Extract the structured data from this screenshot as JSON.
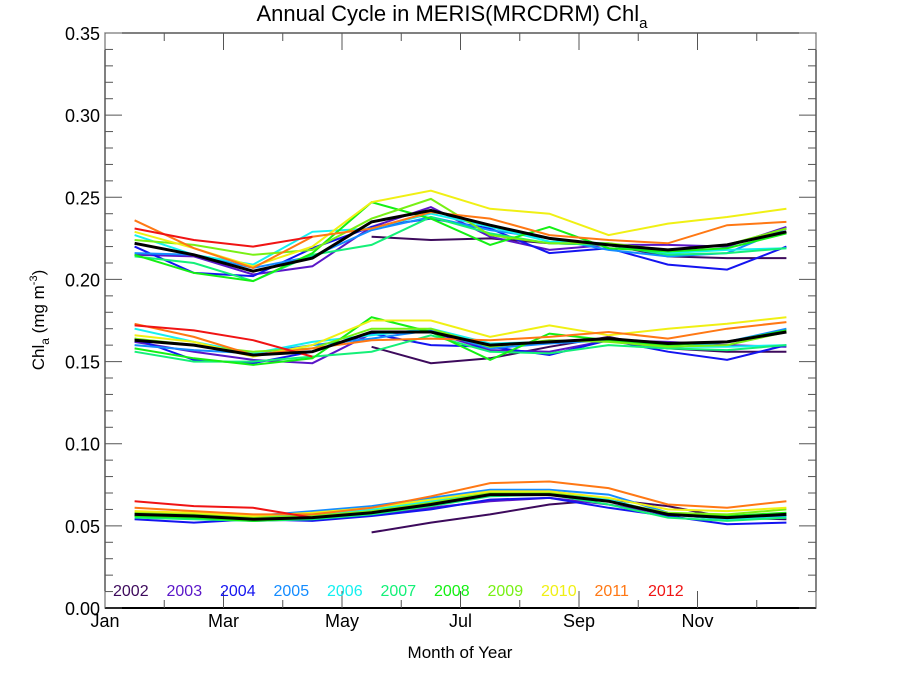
{
  "chart_data": {
    "type": "line",
    "title": "Annual Cycle in MERIS(MRCDRM) Chl",
    "title_subscript": "a",
    "xlabel": "Month of Year",
    "ylabel": "Chl",
    "ylabel_subscript": "a",
    "ylabel_units": " (mg m",
    "ylabel_units_sup": "-3",
    "ylabel_units_close": ")",
    "xlim": [
      0,
      12
    ],
    "ylim": [
      0.0,
      0.35
    ],
    "x_ticks": [
      {
        "value": 0,
        "label": "Jan"
      },
      {
        "value": 2,
        "label": "Mar"
      },
      {
        "value": 4,
        "label": "May"
      },
      {
        "value": 6,
        "label": "Jul"
      },
      {
        "value": 8,
        "label": "Sep"
      },
      {
        "value": 10,
        "label": "Nov"
      }
    ],
    "y_ticks": [
      {
        "value": 0.0,
        "label": "0.00"
      },
      {
        "value": 0.05,
        "label": "0.05"
      },
      {
        "value": 0.1,
        "label": "0.10"
      },
      {
        "value": 0.15,
        "label": "0.15"
      },
      {
        "value": 0.2,
        "label": "0.20"
      },
      {
        "value": 0.25,
        "label": "0.25"
      },
      {
        "value": 0.3,
        "label": "0.30"
      },
      {
        "value": 0.35,
        "label": "0.35"
      }
    ],
    "grid": false,
    "legend_position": "bottom-left",
    "x": [
      0.5,
      1.5,
      2.5,
      3.5,
      4.5,
      5.5,
      6.5,
      7.5,
      8.5,
      9.5,
      10.5,
      11.5
    ],
    "groups": [
      {
        "name": "upper",
        "series": [
          {
            "name": "2002",
            "color": "#3d0a5c",
            "values": [
              null,
              null,
              null,
              null,
              0.226,
              0.224,
              0.225,
              0.222,
              0.221,
              0.214,
              0.213,
              0.213
            ]
          },
          {
            "name": "2003",
            "color": "#5a16c8",
            "values": [
              0.215,
              0.214,
              0.203,
              0.208,
              0.232,
              0.244,
              0.226,
              0.218,
              0.221,
              0.221,
              0.22,
              0.232
            ]
          },
          {
            "name": "2004",
            "color": "#1414f0",
            "values": [
              0.22,
              0.204,
              0.202,
              0.219,
              0.232,
              0.237,
              0.231,
              0.216,
              0.219,
              0.209,
              0.206,
              0.22
            ]
          },
          {
            "name": "2005",
            "color": "#148cff",
            "values": [
              0.216,
              0.215,
              0.207,
              0.214,
              0.23,
              0.238,
              0.23,
              0.225,
              0.218,
              0.214,
              0.216,
              0.231
            ]
          },
          {
            "name": "2006",
            "color": "#14f0f0",
            "values": [
              0.227,
              0.215,
              0.209,
              0.229,
              0.231,
              0.24,
              0.232,
              0.223,
              0.222,
              0.216,
              0.218,
              0.219
            ]
          },
          {
            "name": "2007",
            "color": "#14f078",
            "values": [
              0.214,
              0.21,
              0.199,
              0.215,
              0.221,
              0.238,
              0.228,
              0.222,
              0.221,
              0.215,
              0.216,
              0.219
            ]
          },
          {
            "name": "2008",
            "color": "#14f014",
            "values": [
              0.215,
              0.204,
              0.199,
              0.216,
              0.247,
              0.237,
              0.221,
              0.232,
              0.219,
              0.217,
              0.219,
              0.228
            ]
          },
          {
            "name": "2009",
            "color": "#78f014",
            "values": [
              0.224,
              0.221,
              0.215,
              0.218,
              0.237,
              0.249,
              0.227,
              0.222,
              0.222,
              0.218,
              0.221,
              0.231
            ]
          },
          {
            "name": "2010",
            "color": "#f0f014",
            "values": [
              0.229,
              0.219,
              0.208,
              0.22,
              0.247,
              0.254,
              0.243,
              0.24,
              0.227,
              0.234,
              0.238,
              0.243
            ]
          },
          {
            "name": "2011",
            "color": "#ff7814",
            "values": [
              0.236,
              0.219,
              0.207,
              0.226,
              0.231,
              0.241,
              0.237,
              0.227,
              0.224,
              0.222,
              0.233,
              0.235
            ]
          },
          {
            "name": "2012",
            "color": "#f01414",
            "values": [
              0.231,
              0.224,
              0.22,
              0.226,
              null,
              null,
              null,
              null,
              null,
              null,
              null,
              null
            ]
          },
          {
            "name": "mean",
            "color": "#000000",
            "values": [
              0.222,
              0.215,
              0.205,
              0.213,
              0.235,
              0.242,
              0.233,
              0.225,
              0.221,
              0.218,
              0.221,
              0.229
            ]
          }
        ]
      },
      {
        "name": "middle",
        "series": [
          {
            "name": "2002",
            "color": "#3d0a5c",
            "values": [
              null,
              null,
              null,
              null,
              0.159,
              0.149,
              0.152,
              0.159,
              0.165,
              0.158,
              0.156,
              0.156
            ]
          },
          {
            "name": "2003",
            "color": "#5a16c8",
            "values": [
              0.162,
              0.156,
              0.151,
              0.149,
              0.167,
              0.168,
              0.157,
              0.156,
              0.163,
              0.162,
              0.16,
              0.159
            ]
          },
          {
            "name": "2004",
            "color": "#1414f0",
            "values": [
              0.164,
              0.151,
              0.149,
              0.156,
              0.167,
              0.16,
              0.159,
              0.154,
              0.163,
              0.156,
              0.151,
              0.16
            ]
          },
          {
            "name": "2005",
            "color": "#148cff",
            "values": [
              0.16,
              0.157,
              0.155,
              0.16,
              0.164,
              0.169,
              0.158,
              0.161,
              0.163,
              0.158,
              0.162,
              0.17
            ]
          },
          {
            "name": "2006",
            "color": "#14f0f0",
            "values": [
              0.17,
              0.162,
              0.155,
              0.162,
              0.166,
              0.17,
              0.161,
              0.162,
              0.164,
              0.159,
              0.159,
              0.16
            ]
          },
          {
            "name": "2007",
            "color": "#14f078",
            "values": [
              0.156,
              0.15,
              0.15,
              0.153,
              0.156,
              0.166,
              0.156,
              0.155,
              0.16,
              0.158,
              0.157,
              0.16
            ]
          },
          {
            "name": "2008",
            "color": "#14f014",
            "values": [
              0.158,
              0.152,
              0.148,
              0.152,
              0.177,
              0.168,
              0.151,
              0.167,
              0.163,
              0.16,
              0.162,
              0.169
            ]
          },
          {
            "name": "2009",
            "color": "#78f014",
            "values": [
              0.164,
              0.16,
              0.156,
              0.158,
              0.17,
              0.17,
              0.159,
              0.163,
              0.162,
              0.159,
              0.16,
              0.168
            ]
          },
          {
            "name": "2010",
            "color": "#f0f014",
            "values": [
              0.166,
              0.162,
              0.153,
              0.16,
              0.175,
              0.175,
              0.165,
              0.172,
              0.166,
              0.17,
              0.173,
              0.177
            ]
          },
          {
            "name": "2011",
            "color": "#ff7814",
            "values": [
              0.173,
              0.165,
              0.154,
              0.158,
              0.163,
              0.164,
              0.163,
              0.165,
              0.168,
              0.164,
              0.17,
              0.174
            ]
          },
          {
            "name": "2012",
            "color": "#f01414",
            "values": [
              0.172,
              0.169,
              0.163,
              0.153,
              null,
              null,
              null,
              null,
              null,
              null,
              null,
              null
            ]
          },
          {
            "name": "mean",
            "color": "#000000",
            "values": [
              0.163,
              0.16,
              0.154,
              0.156,
              0.168,
              0.168,
              0.16,
              0.162,
              0.164,
              0.161,
              0.162,
              0.168
            ]
          }
        ]
      },
      {
        "name": "lower",
        "series": [
          {
            "name": "2002",
            "color": "#3d0a5c",
            "values": [
              null,
              null,
              null,
              null,
              0.046,
              0.052,
              0.057,
              0.063,
              0.066,
              0.062,
              0.055,
              0.054
            ]
          },
          {
            "name": "2003",
            "color": "#5a16c8",
            "values": [
              0.056,
              0.055,
              0.053,
              0.054,
              0.057,
              0.061,
              0.065,
              0.067,
              0.063,
              0.057,
              0.054,
              0.055
            ]
          },
          {
            "name": "2004",
            "color": "#1414f0",
            "values": [
              0.054,
              0.052,
              0.054,
              0.053,
              0.056,
              0.06,
              0.066,
              0.067,
              0.061,
              0.056,
              0.051,
              0.052
            ]
          },
          {
            "name": "2005",
            "color": "#148cff",
            "values": [
              0.057,
              0.057,
              0.056,
              0.059,
              0.062,
              0.067,
              0.072,
              0.072,
              0.069,
              0.058,
              0.055,
              0.056
            ]
          },
          {
            "name": "2006",
            "color": "#14f0f0",
            "values": [
              0.057,
              0.056,
              0.055,
              0.057,
              0.06,
              0.065,
              0.07,
              0.071,
              0.066,
              0.057,
              0.054,
              0.055
            ]
          },
          {
            "name": "2007",
            "color": "#14f078",
            "values": [
              0.055,
              0.054,
              0.053,
              0.054,
              0.057,
              0.062,
              0.068,
              0.069,
              0.063,
              0.055,
              0.053,
              0.055
            ]
          },
          {
            "name": "2008",
            "color": "#14f014",
            "values": [
              0.056,
              0.055,
              0.053,
              0.055,
              0.058,
              0.063,
              0.069,
              0.07,
              0.065,
              0.057,
              0.056,
              0.058
            ]
          },
          {
            "name": "2009",
            "color": "#78f014",
            "values": [
              0.058,
              0.057,
              0.055,
              0.056,
              0.059,
              0.064,
              0.07,
              0.07,
              0.065,
              0.058,
              0.057,
              0.06
            ]
          },
          {
            "name": "2010",
            "color": "#f0f014",
            "values": [
              0.059,
              0.058,
              0.056,
              0.058,
              0.061,
              0.066,
              0.071,
              0.071,
              0.067,
              0.06,
              0.059,
              0.061
            ]
          },
          {
            "name": "2011",
            "color": "#ff7814",
            "values": [
              0.061,
              0.059,
              0.057,
              0.057,
              0.061,
              0.068,
              0.076,
              0.077,
              0.073,
              0.063,
              0.061,
              0.065
            ]
          },
          {
            "name": "2012",
            "color": "#f01414",
            "values": [
              0.065,
              0.062,
              0.061,
              0.055,
              null,
              null,
              null,
              null,
              null,
              null,
              null,
              null
            ]
          },
          {
            "name": "mean",
            "color": "#000000",
            "values": [
              0.057,
              0.056,
              0.054,
              0.055,
              0.058,
              0.063,
              0.069,
              0.069,
              0.065,
              0.057,
              0.055,
              0.057
            ]
          }
        ]
      }
    ],
    "legend": [
      {
        "label": "2002",
        "color": "#3d0a5c"
      },
      {
        "label": "2003",
        "color": "#5a16c8"
      },
      {
        "label": "2004",
        "color": "#1414f0"
      },
      {
        "label": "2005",
        "color": "#148cff"
      },
      {
        "label": "2006",
        "color": "#14f0f0"
      },
      {
        "label": "2007",
        "color": "#14f078"
      },
      {
        "label": "2008",
        "color": "#14f014"
      },
      {
        "label": "2009",
        "color": "#78f014"
      },
      {
        "label": "2010",
        "color": "#f0f014"
      },
      {
        "label": "2011",
        "color": "#ff7814"
      },
      {
        "label": "2012",
        "color": "#f01414"
      }
    ]
  }
}
